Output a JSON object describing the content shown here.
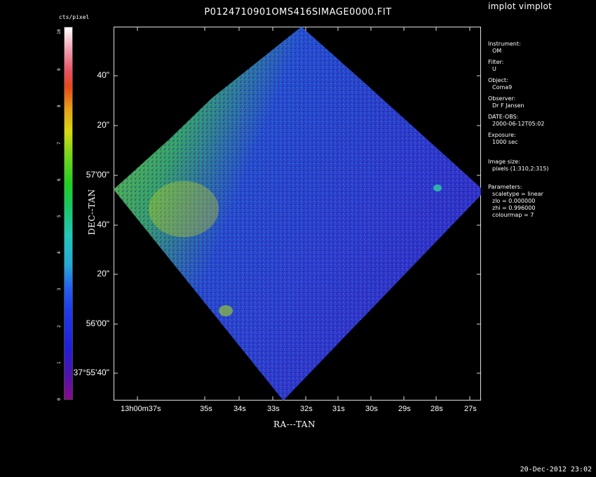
{
  "title": "P0124710901OMS416SIMAGE0000.FIT",
  "tool_title": "implot vimplot",
  "colorbar": {
    "label": "cts/pixel",
    "ticks": [
      "0",
      "1",
      "2",
      "3",
      "4",
      "5",
      "6",
      "7",
      "8",
      "9",
      "10"
    ]
  },
  "axes": {
    "ylabel": "DEC--TAN",
    "xlabel": "RA---TAN",
    "yticks": [
      "40\"",
      "20\"",
      "57'00\"",
      "40\"",
      "20\"",
      "56'00\"",
      "37°55'40\""
    ],
    "xticks": [
      "13h00m37s",
      "35s",
      "34s",
      "33s",
      "32s",
      "31s",
      "30s",
      "29s",
      "28s",
      "27s"
    ]
  },
  "info": {
    "instrument_label": "Instrument:",
    "instrument": "OM",
    "filter_label": "Filter:",
    "filter": "U",
    "object_label": "Object:",
    "object": "Coma9",
    "observer_label": "Observer:",
    "observer": "Dr F Jansen",
    "date_label": "DATE-OBS:",
    "date": "2000-06-12T05:02",
    "exposure_label": "Exposure:",
    "exposure": "1000 sec",
    "size_label": "Image size:",
    "size": "pixels (1:310,2:315)",
    "params_label": "Parameters:",
    "scaletype": "scaletype = linear",
    "zlo": "zlo = 0.000000",
    "zhi": "zhi = 0.996000",
    "colourmap": "colourmap =   7"
  },
  "timestamp": "20-Dec-2012 23:02"
}
